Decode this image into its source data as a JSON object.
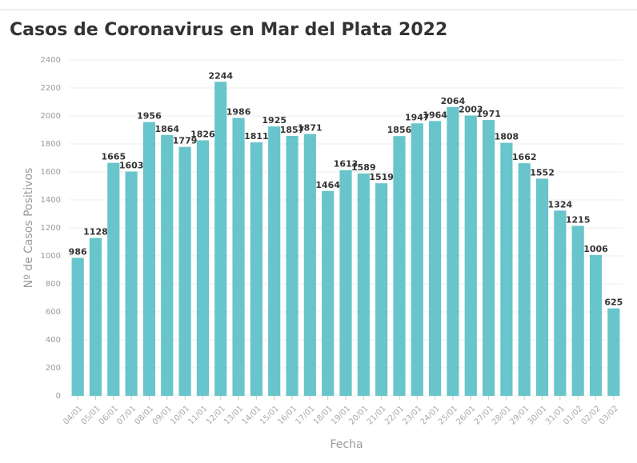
{
  "chart_data": {
    "type": "bar",
    "title": "Casos de Coronavirus en Mar del Plata 2022",
    "x_label": "Fecha",
    "y_label": "Nº de Casos Positivos",
    "categories": [
      "04/01",
      "05/01",
      "06/01",
      "07/01",
      "08/01",
      "09/01",
      "10/01",
      "11/01",
      "12/01",
      "13/01",
      "14/01",
      "15/01",
      "16/01",
      "17/01",
      "18/01",
      "19/01",
      "20/01",
      "21/01",
      "22/01",
      "23/01",
      "24/01",
      "25/01",
      "26/01",
      "27/01",
      "28/01",
      "29/01",
      "30/01",
      "31/01",
      "01/02",
      "02/02",
      "03/02"
    ],
    "values": [
      986,
      1128,
      1665,
      1603,
      1956,
      1864,
      1779,
      1826,
      2244,
      1986,
      1811,
      1925,
      1857,
      1871,
      1464,
      1613,
      1589,
      1519,
      1856,
      1947,
      1964,
      2064,
      2003,
      1971,
      1808,
      1662,
      1552,
      1324,
      1215,
      1006,
      625
    ],
    "color": "#67c5cb",
    "ylim": [
      0,
      2400
    ],
    "yticks": [
      0,
      200,
      400,
      600,
      800,
      1000,
      1200,
      1400,
      1600,
      1800,
      2000,
      2200,
      2400
    ],
    "grid": true
  }
}
